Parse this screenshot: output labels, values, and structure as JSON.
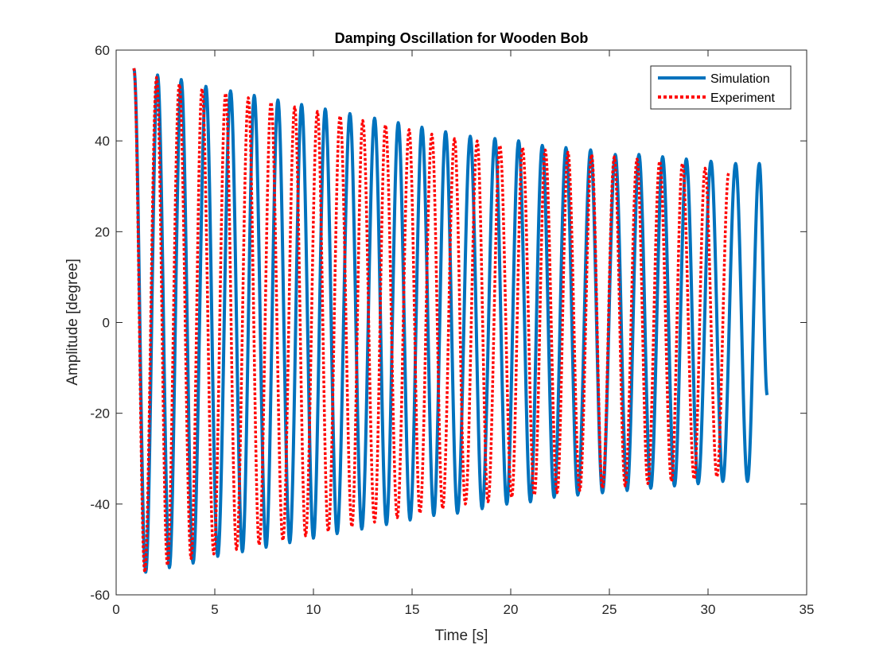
{
  "chart_data": {
    "type": "line",
    "title": "Damping Oscillation for Wooden Bob",
    "xlabel": "Time [s]",
    "ylabel": "Amplitude [degree]",
    "xlim": [
      0,
      35
    ],
    "ylim": [
      -60,
      60
    ],
    "xticks": [
      0,
      5,
      10,
      15,
      20,
      25,
      30,
      35
    ],
    "yticks": [
      -60,
      -40,
      -20,
      0,
      20,
      40,
      60
    ],
    "xtick_labels": [
      "0",
      "5",
      "10",
      "15",
      "20",
      "25",
      "30",
      "35"
    ],
    "ytick_labels": [
      "-60",
      "-40",
      "-20",
      "0",
      "20",
      "40",
      "60"
    ],
    "grid": false,
    "legend_position": "top-right",
    "series": [
      {
        "name": "Simulation",
        "color": "#0072BD",
        "style": "solid",
        "t_start": 0.9,
        "t_end": 33.0,
        "period": 1.22,
        "initial_amplitude": 56,
        "peaks": [
          [
            0.9,
            56
          ],
          [
            1.5,
            -55
          ],
          [
            2.1,
            54.5
          ],
          [
            2.7,
            -54
          ],
          [
            3.3,
            53.5
          ],
          [
            3.9,
            -53
          ],
          [
            4.55,
            52
          ],
          [
            5.15,
            -51.5
          ],
          [
            5.8,
            51
          ],
          [
            6.4,
            -50.5
          ],
          [
            7.0,
            50
          ],
          [
            7.6,
            -49.5
          ],
          [
            8.2,
            49
          ],
          [
            8.8,
            -48.5
          ],
          [
            9.4,
            48
          ],
          [
            10.0,
            -47.5
          ],
          [
            10.6,
            47
          ],
          [
            11.2,
            -46.5
          ],
          [
            11.85,
            46
          ],
          [
            12.45,
            -45.5
          ],
          [
            13.1,
            45
          ],
          [
            13.7,
            -44.5
          ],
          [
            14.3,
            44
          ],
          [
            14.9,
            -43.5
          ],
          [
            15.5,
            43
          ],
          [
            16.1,
            -42.5
          ],
          [
            16.7,
            42
          ],
          [
            17.3,
            -42
          ],
          [
            17.95,
            41
          ],
          [
            18.55,
            -41
          ],
          [
            19.2,
            40.5
          ],
          [
            19.8,
            -40
          ],
          [
            20.4,
            40
          ],
          [
            21.0,
            -39.5
          ],
          [
            21.6,
            39
          ],
          [
            22.2,
            -38.5
          ],
          [
            22.8,
            38.5
          ],
          [
            23.4,
            -38
          ],
          [
            24.05,
            38
          ],
          [
            24.65,
            -37.5
          ],
          [
            25.3,
            37
          ],
          [
            25.9,
            -37
          ],
          [
            26.5,
            37
          ],
          [
            27.1,
            -36.5
          ],
          [
            27.7,
            36.5
          ],
          [
            28.3,
            -36
          ],
          [
            28.9,
            36
          ],
          [
            29.5,
            -35.5
          ],
          [
            30.15,
            35.5
          ],
          [
            30.75,
            -35
          ],
          [
            31.4,
            35
          ],
          [
            32.0,
            -35
          ],
          [
            32.6,
            35
          ],
          [
            33.0,
            -16
          ]
        ]
      },
      {
        "name": "Experiment",
        "color": "#FF0000",
        "style": "dotted",
        "t_start": 0.9,
        "t_end": 31.05,
        "period": 1.17,
        "initial_amplitude": 56,
        "peaks": [
          [
            0.9,
            56
          ],
          [
            1.45,
            -55
          ],
          [
            2.05,
            54
          ],
          [
            2.6,
            -53.5
          ],
          [
            3.2,
            52.5
          ],
          [
            3.8,
            -52
          ],
          [
            4.35,
            51.5
          ],
          [
            4.95,
            -51
          ],
          [
            5.55,
            50.5
          ],
          [
            6.1,
            -50
          ],
          [
            6.7,
            49.5
          ],
          [
            7.25,
            -49
          ],
          [
            7.85,
            48.5
          ],
          [
            8.45,
            -48
          ],
          [
            9.05,
            47.5
          ],
          [
            9.6,
            -47
          ],
          [
            10.2,
            46.5
          ],
          [
            10.75,
            -46
          ],
          [
            11.35,
            45.5
          ],
          [
            11.95,
            -45
          ],
          [
            12.5,
            44.5
          ],
          [
            13.1,
            -44
          ],
          [
            13.65,
            43.5
          ],
          [
            14.25,
            -43
          ],
          [
            14.85,
            42.5
          ],
          [
            15.4,
            -42
          ],
          [
            16.0,
            41.5
          ],
          [
            16.55,
            -41
          ],
          [
            17.15,
            40.5
          ],
          [
            17.7,
            -40
          ],
          [
            18.3,
            40
          ],
          [
            18.85,
            -39.5
          ],
          [
            19.45,
            39
          ],
          [
            20.05,
            -38.5
          ],
          [
            20.6,
            38.5
          ],
          [
            21.2,
            -38
          ],
          [
            21.75,
            38
          ],
          [
            22.35,
            -37.5
          ],
          [
            22.9,
            37.5
          ],
          [
            23.5,
            -37
          ],
          [
            24.1,
            37
          ],
          [
            24.65,
            -36.5
          ],
          [
            25.25,
            36.5
          ],
          [
            25.8,
            -36
          ],
          [
            26.4,
            36
          ],
          [
            26.95,
            -35.5
          ],
          [
            27.55,
            35.5
          ],
          [
            28.15,
            -35
          ],
          [
            28.7,
            35
          ],
          [
            29.3,
            -34.5
          ],
          [
            29.85,
            34
          ],
          [
            30.45,
            -34
          ],
          [
            31.05,
            33
          ]
        ]
      }
    ]
  }
}
